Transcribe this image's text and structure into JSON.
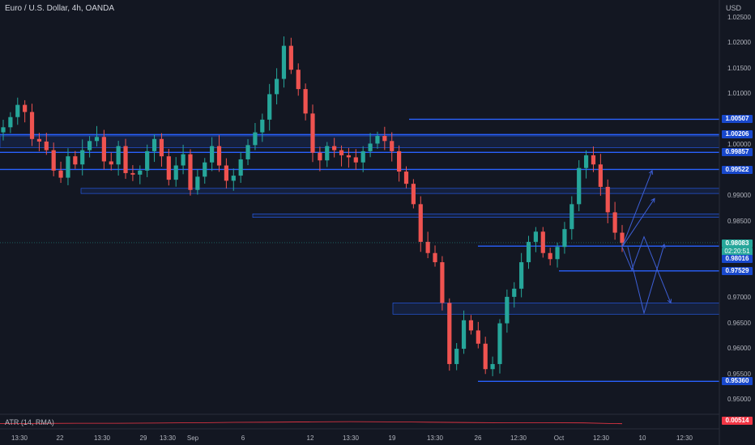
{
  "chart_title": "Euro / U.S. Dollar, 4h, OANDA",
  "currency": "USD",
  "indicator_label": "ATR (14, RMA)",
  "indicator_value": "0.00514",
  "current_price": "0.98083",
  "countdown": "02:20:51",
  "colors": {
    "up": "#26a69a",
    "down": "#ef5350",
    "level": "#2962ff",
    "background": "#131722",
    "atr": "#f23645"
  },
  "chart_data": {
    "type": "candlestick",
    "symbol": "EURUSD",
    "timeframe": "4h",
    "ylim": [
      0.948,
      1.0262
    ],
    "y_ticks": [
      "1.02500",
      "1.02000",
      "1.01500",
      "1.01000",
      "1.00000",
      "0.99000",
      "0.98500",
      "0.97000",
      "0.96500",
      "0.96000",
      "0.95500",
      "0.95000"
    ],
    "x_ticks": [
      "13:30",
      "22",
      "13:30",
      "29",
      "13:30",
      "Sep",
      "6",
      "12",
      "13:30",
      "19",
      "13:30",
      "26",
      "12:30",
      "Oct",
      "12:30",
      "10",
      "12:30"
    ],
    "price_labels": [
      {
        "value": "1.00507",
        "style": "blue"
      },
      {
        "value": "1.00206",
        "style": "blue"
      },
      {
        "value": "0.99857",
        "style": "blue"
      },
      {
        "value": "0.99522",
        "style": "blue"
      },
      {
        "value": "0.98016",
        "style": "blue"
      },
      {
        "value": "0.97529",
        "style": "blue"
      },
      {
        "value": "0.95360",
        "style": "blue"
      }
    ],
    "horizontal_levels": [
      1.00507,
      1.00206,
      0.99857,
      0.99522,
      0.98016,
      0.97529,
      0.9536
    ],
    "zones": [
      [
        1.0018,
        0.9995
      ],
      [
        0.9915,
        0.9905
      ],
      [
        0.9865,
        0.9858
      ],
      [
        0.969,
        0.9668
      ]
    ],
    "close_path": [
      1.0035,
      1.0055,
      1.0079,
      1.0065,
      1.0012,
      1.0007,
      0.999,
      0.995,
      0.9936,
      0.9978,
      0.9962,
      0.999,
      1.0008,
      1.0016,
      0.9968,
      0.9962,
      0.9998,
      0.9945,
      0.9942,
      0.995,
      0.9988,
      1.0012,
      0.9978,
      0.9932,
      0.996,
      0.9982,
      0.9912,
      0.9938,
      0.9966,
      0.9998,
      0.996,
      0.993,
      0.994,
      0.9972,
      1.0,
      1.0025,
      1.005,
      1.01,
      1.013,
      1.0195,
      1.0148,
      1.011,
      1.0062,
      0.9985,
      0.997,
      0.9998,
      0.999,
      0.998,
      0.9976,
      0.9966,
      0.9988,
      1.0003,
      1.0018,
      1.0008,
      0.9988,
      0.9948,
      0.9924,
      0.9884,
      0.981,
      0.9788,
      0.977,
      0.969,
      0.957,
      0.96,
      0.9656,
      0.9636,
      0.961,
      0.956,
      0.957,
      0.965,
      0.9702,
      0.9718,
      0.977,
      0.981,
      0.983,
      0.9788,
      0.9776,
      0.98,
      0.9835,
      0.9884,
      0.9955,
      0.998,
      0.9962,
      0.9918,
      0.9868,
      0.9828,
      0.9808
    ],
    "atr_values": [
      0.0052,
      0.0053,
      0.0054,
      0.0054,
      0.0055,
      0.0057,
      0.0059,
      0.006,
      0.0062,
      0.0063,
      0.0062,
      0.006,
      0.0058,
      0.0057,
      0.0057,
      0.0056,
      0.00514
    ]
  }
}
